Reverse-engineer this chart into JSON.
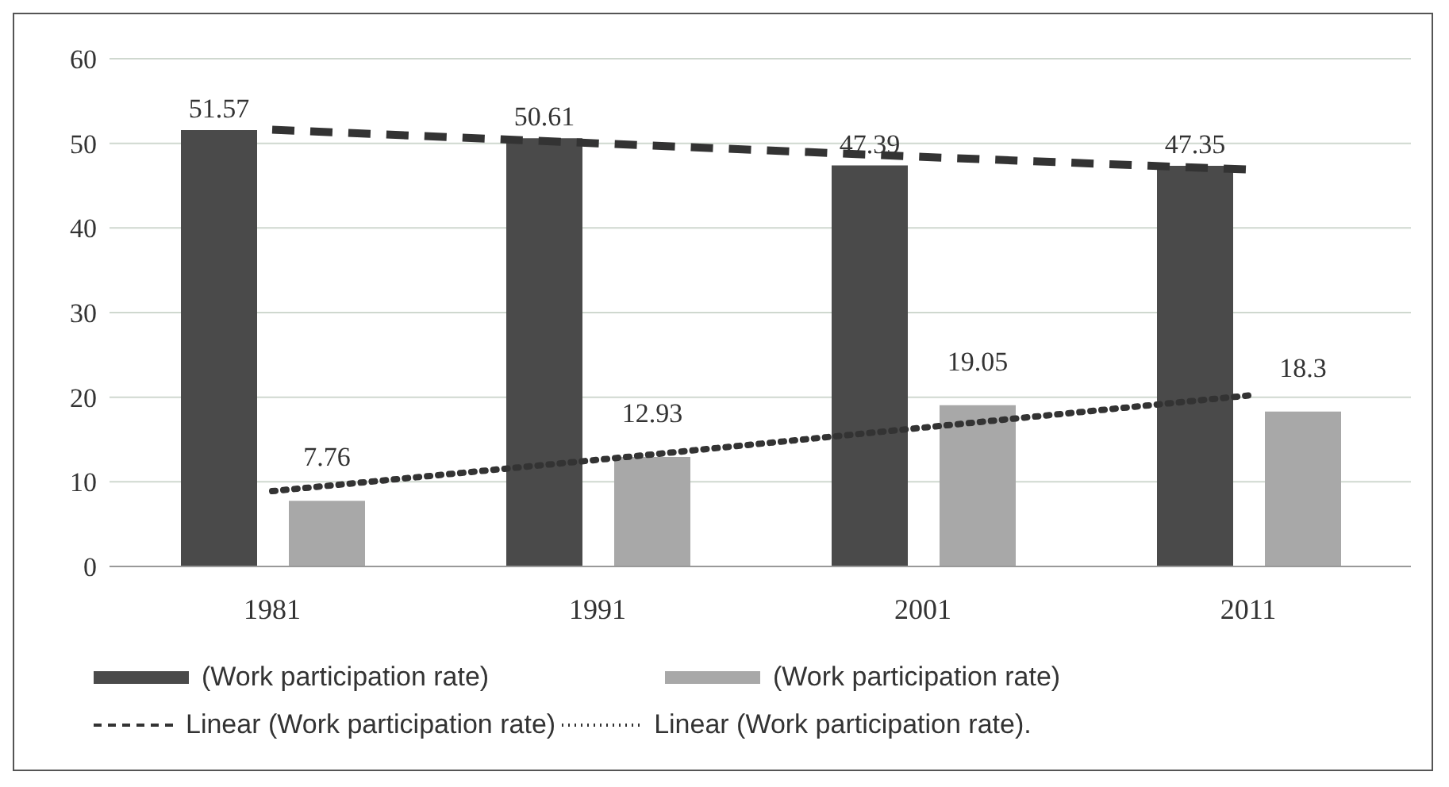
{
  "chart_data": {
    "type": "bar",
    "categories": [
      "1981",
      "1991",
      "2001",
      "2011"
    ],
    "series": [
      {
        "name": "(Work participation rate)",
        "color": "#4a4a4a",
        "values": [
          51.57,
          50.61,
          47.39,
          47.35
        ],
        "value_labels": [
          "51.57",
          "50.61",
          "47.39",
          "47.35"
        ]
      },
      {
        "name": "(Work participation rate)",
        "color": "#a8a8a8",
        "values": [
          7.76,
          12.93,
          19.05,
          18.3
        ],
        "value_labels": [
          "7.76",
          "12.93",
          "19.05",
          "18.3"
        ]
      },
      {
        "name": "Linear (Work participation rate)",
        "type": "line",
        "line_style": "dashed",
        "marker": "none",
        "color": "#333333",
        "values": [
          51.6,
          50.0,
          48.4,
          46.9
        ]
      },
      {
        "name": "Linear (Work participation rate).",
        "type": "line",
        "line_style": "dotted",
        "marker": "none",
        "color": "#333333",
        "values": [
          8.9,
          12.6,
          16.4,
          20.2
        ]
      }
    ],
    "ylim": [
      0,
      60
    ],
    "yticks": [
      0,
      10,
      20,
      30,
      40,
      50,
      60
    ],
    "grid": "y",
    "legend": "bottom"
  }
}
